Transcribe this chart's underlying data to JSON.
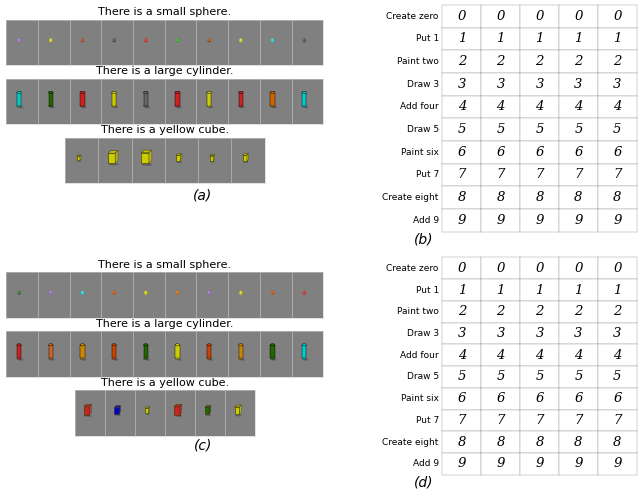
{
  "fig_width": 6.4,
  "fig_height": 4.95,
  "bg_color": "#f0f0f0",
  "scene_bg": "#808080",
  "panel_b_rows": [
    {
      "label": "Create zero",
      "digits": [
        "0",
        "0",
        "0",
        "0",
        "0"
      ]
    },
    {
      "label": "Put 1",
      "digits": [
        "1",
        "1",
        "1",
        "1",
        "1"
      ]
    },
    {
      "label": "Paint two",
      "digits": [
        "2",
        "2",
        "2",
        "2",
        "2"
      ]
    },
    {
      "label": "Draw 3",
      "digits": [
        "3",
        "3",
        "3",
        "3",
        "3"
      ]
    },
    {
      "label": "Add four",
      "digits": [
        "4",
        "4",
        "4",
        "4",
        "4"
      ]
    },
    {
      "label": "Draw 5",
      "digits": [
        "5",
        "5",
        "5",
        "5",
        "5"
      ]
    },
    {
      "label": "Paint six",
      "digits": [
        "6",
        "6",
        "6",
        "6",
        "6"
      ]
    },
    {
      "label": "Put 7",
      "digits": [
        "7",
        "7",
        "7",
        "7",
        "7"
      ]
    },
    {
      "label": "Create eight",
      "digits": [
        "8",
        "8",
        "8",
        "8",
        "8"
      ]
    },
    {
      "label": "Add 9",
      "digits": [
        "9",
        "9",
        "9",
        "9",
        "9"
      ]
    }
  ],
  "panel_d_rows": [
    {
      "label": "Create zero",
      "digits": [
        "0",
        "0",
        "0",
        "0",
        "0"
      ]
    },
    {
      "label": "Put 1",
      "digits": [
        "1",
        "1",
        "1",
        "1",
        "1"
      ]
    },
    {
      "label": "Paint two",
      "digits": [
        "2",
        "2",
        "2",
        "2",
        "2"
      ]
    },
    {
      "label": "Draw 3",
      "digits": [
        "3",
        "3",
        "3",
        "3",
        "3"
      ]
    },
    {
      "label": "Add four",
      "digits": [
        "4",
        "4",
        "4",
        "4",
        "4"
      ]
    },
    {
      "label": "Draw 5",
      "digits": [
        "5",
        "5",
        "5",
        "5",
        "5"
      ]
    },
    {
      "label": "Paint six",
      "digits": [
        "6",
        "6",
        "6",
        "6",
        "6"
      ]
    },
    {
      "label": "Put 7",
      "digits": [
        "7",
        "7",
        "7",
        "7",
        "7"
      ]
    },
    {
      "label": "Create eight",
      "digits": [
        "8",
        "8",
        "8",
        "8",
        "8"
      ]
    },
    {
      "label": "Add 9",
      "digits": [
        "9",
        "9",
        "9",
        "9",
        "9"
      ]
    }
  ],
  "label_b": "(b)",
  "label_d": "(d)",
  "label_a": "(a)",
  "label_c": "(c)",
  "caption_sphere": "There is a small sphere.",
  "caption_cylinder": "There is a large cylinder.",
  "caption_cube": "There is a yellow cube.",
  "sphere_colors_a": [
    "#9966cc",
    "#cccc00",
    "#994422",
    "#444444",
    "#cc2222",
    "#22aa22",
    "#994400",
    "#cccc22",
    "#22cccc",
    "#444444"
  ],
  "cylinder_colors_a": [
    "#00cccc",
    "#226600",
    "#cc2222",
    "#cccc00",
    "#666666",
    "#cc2222",
    "#cccc00",
    "#cc2222",
    "#cc6600",
    "#00cccc"
  ],
  "cube_colors_a": [
    "#cccc00",
    "#cccc00",
    "#cccc00",
    "#cccc00",
    "#cccc00",
    "#cccc00"
  ],
  "sphere_colors_c": [
    "#226622",
    "#9966cc",
    "#22cccc",
    "#cc4400",
    "#cccc00",
    "#cc6600",
    "#9966cc",
    "#cccc00",
    "#cc4400",
    "#cc2222"
  ],
  "cylinder_colors_c": [
    "#cc2222",
    "#cc6622",
    "#cc8800",
    "#cc4400",
    "#226600",
    "#cccc00",
    "#cc4400",
    "#cc8800",
    "#226600",
    "#00cccc"
  ],
  "cube_colors_c": [
    "#cc2222",
    "#0000cc",
    "#cccc00",
    "#cc2222",
    "#226600",
    "#cccc00"
  ]
}
